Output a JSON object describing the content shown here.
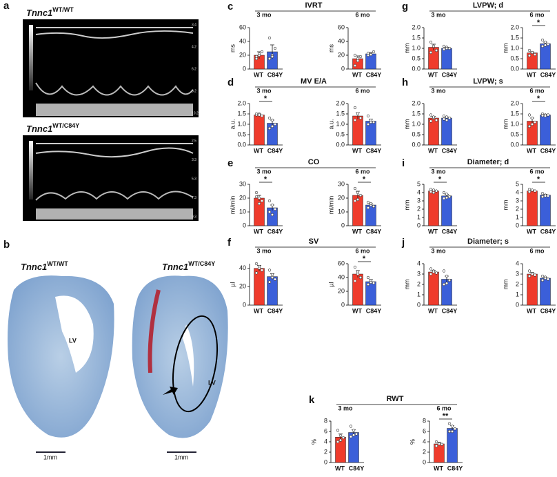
{
  "images": {
    "a": {
      "letter": "a",
      "echo": [
        {
          "gene": "Tnnc1",
          "genotype": "WT/WT",
          "depth_labels": [
            "3.4",
            "4.2",
            "6.2",
            "8.2",
            "10.2"
          ]
        },
        {
          "gene": "Tnnc1",
          "genotype": "WT/C84Y",
          "depth_labels": [
            "2.5",
            "3.3",
            "5.3",
            "7.3",
            "9.3"
          ]
        }
      ]
    },
    "b": {
      "letter": "b",
      "histology": [
        {
          "gene": "Tnnc1",
          "genotype": "WT/WT",
          "region": "LV",
          "scale": "1mm"
        },
        {
          "gene": "Tnnc1",
          "genotype": "WT/C84Y",
          "region": "LV",
          "scale": "1mm"
        }
      ]
    }
  },
  "chart_data": [
    {
      "type": "bar",
      "panel": "c",
      "title": "IVRT",
      "ylabel": "ms",
      "categories": [
        "WT",
        "C84Y"
      ],
      "colors": [
        "#ef3b2c",
        "#3b5fd9"
      ],
      "groups": [
        {
          "label": "3 mo",
          "ylim": [
            0,
            60
          ],
          "yticks": [
            0,
            20,
            40,
            60
          ],
          "values": [
            20,
            25
          ],
          "errors": [
            5,
            10
          ],
          "points": [
            [
              15,
              22,
              25,
              18,
              20
            ],
            [
              15,
              20,
              30,
              45,
              18
            ]
          ]
        },
        {
          "label": "6 mo",
          "ylim": [
            0,
            60
          ],
          "yticks": [
            0,
            20,
            40,
            60
          ],
          "values": [
            15,
            22
          ],
          "errors": [
            4,
            2
          ],
          "points": [
            [
              5,
              12,
              18,
              20,
              15
            ],
            [
              20,
              22,
              25,
              23,
              21
            ]
          ]
        }
      ]
    },
    {
      "type": "bar",
      "panel": "d",
      "title": "MV E/A",
      "ylabel": "a.u.",
      "categories": [
        "WT",
        "C84Y"
      ],
      "colors": [
        "#ef3b2c",
        "#3b5fd9"
      ],
      "groups": [
        {
          "label": "3 mo",
          "ylim": [
            0,
            2
          ],
          "yticks": [
            {
              "value": 0,
              "label": "0.0"
            },
            {
              "value": 0.5,
              "label": "0.5"
            },
            {
              "value": 1,
              "label": "1.0"
            },
            {
              "value": 1.5,
              "label": "1.5"
            },
            {
              "value": 2,
              "label": "2.0"
            }
          ],
          "values": [
            1.45,
            1.05
          ],
          "errors": [
            0.05,
            0.15
          ],
          "points": [
            [
              1.45,
              1.5,
              1.4,
              1.5,
              1.45
            ],
            [
              1.3,
              1.2,
              1.0,
              0.8,
              0.9
            ]
          ],
          "significance": "*"
        },
        {
          "label": "6 mo",
          "ylim": [
            0,
            2
          ],
          "yticks": [
            {
              "value": 0,
              "label": "0.0"
            },
            {
              "value": 0.5,
              "label": "0.5"
            },
            {
              "value": 1,
              "label": "1.0"
            },
            {
              "value": 1.5,
              "label": "1.5"
            },
            {
              "value": 2,
              "label": "2.0"
            }
          ],
          "values": [
            1.4,
            1.15
          ],
          "errors": [
            0.15,
            0.1
          ],
          "points": [
            [
              1.8,
              1.5,
              1.3,
              1.2
            ],
            [
              1.4,
              1.2,
              1.1,
              1.0,
              1.1
            ]
          ]
        }
      ]
    },
    {
      "type": "bar",
      "panel": "e",
      "title": "CO",
      "ylabel": "ml/min",
      "categories": [
        "WT",
        "C84Y"
      ],
      "colors": [
        "#ef3b2c",
        "#3b5fd9"
      ],
      "groups": [
        {
          "label": "3 mo",
          "ylim": [
            0,
            30
          ],
          "yticks": [
            0,
            10,
            20,
            30
          ],
          "values": [
            20,
            13
          ],
          "errors": [
            2,
            2
          ],
          "points": [
            [
              24,
              20,
              18,
              21,
              16
            ],
            [
              18,
              15,
              12,
              10,
              8
            ]
          ],
          "significance": "*"
        },
        {
          "label": "6 mo",
          "ylim": [
            0,
            30
          ],
          "yticks": [
            0,
            10,
            20,
            30
          ],
          "values": [
            22,
            15
          ],
          "errors": [
            3,
            1
          ],
          "points": [
            [
              27,
              24,
              22,
              18,
              19
            ],
            [
              17,
              15,
              14,
              13,
              16
            ]
          ],
          "significance": "*"
        }
      ]
    },
    {
      "type": "bar",
      "panel": "f",
      "title": "SV",
      "ylabel": "µl",
      "categories": [
        "WT",
        "C84Y"
      ],
      "colors": [
        "#ef3b2c",
        "#3b5fd9"
      ],
      "groups": [
        {
          "label": "3 mo",
          "ylim": [
            0,
            45
          ],
          "yticks": [
            0,
            20,
            40
          ],
          "values": [
            40,
            31
          ],
          "errors": [
            3,
            3
          ],
          "points": [
            [
              45,
              42,
              38,
              35,
              40
            ],
            [
              38,
              33,
              28,
              25,
              30
            ]
          ]
        },
        {
          "label": "6 mo",
          "ylim": [
            0,
            60
          ],
          "yticks": [
            0,
            20,
            40,
            60
          ],
          "values": [
            45,
            34
          ],
          "errors": [
            5,
            3
          ],
          "points": [
            [
              55,
              48,
              40,
              35,
              45
            ],
            [
              40,
              35,
              32,
              30,
              33
            ]
          ],
          "significance": "*"
        }
      ]
    },
    {
      "type": "bar",
      "panel": "g",
      "title": "LVPW; d",
      "ylabel": "mm",
      "categories": [
        "WT",
        "C84Y"
      ],
      "colors": [
        "#ef3b2c",
        "#3b5fd9"
      ],
      "groups": [
        {
          "label": "3 mo",
          "ylim": [
            0,
            2
          ],
          "yticks": [
            {
              "value": 0,
              "label": "0.0"
            },
            {
              "value": 0.5,
              "label": "0.5"
            },
            {
              "value": 1,
              "label": "1.0"
            },
            {
              "value": 1.5,
              "label": "1.5"
            },
            {
              "value": 2,
              "label": "2.0"
            }
          ],
          "values": [
            1.05,
            1.0
          ],
          "errors": [
            0.15,
            0.05
          ],
          "points": [
            [
              1.3,
              1.1,
              0.9,
              0.8,
              1.1
            ],
            [
              1.1,
              1.05,
              1.0,
              0.95,
              1.0
            ]
          ]
        },
        {
          "label": "6 mo",
          "ylim": [
            0,
            2
          ],
          "yticks": [
            {
              "value": 0,
              "label": "0.0"
            },
            {
              "value": 0.5,
              "label": "0.5"
            },
            {
              "value": 1,
              "label": "1.0"
            },
            {
              "value": 1.5,
              "label": "1.5"
            },
            {
              "value": 2,
              "label": "2.0"
            }
          ],
          "values": [
            0.78,
            1.22
          ],
          "errors": [
            0.05,
            0.08
          ],
          "points": [
            [
              0.9,
              0.8,
              0.7,
              0.65,
              0.8
            ],
            [
              1.4,
              1.3,
              1.2,
              1.1,
              1.15
            ]
          ],
          "significance": "*"
        }
      ]
    },
    {
      "type": "bar",
      "panel": "h",
      "title": "LVPW; s",
      "ylabel": "mm",
      "categories": [
        "WT",
        "C84Y"
      ],
      "colors": [
        "#ef3b2c",
        "#3b5fd9"
      ],
      "groups": [
        {
          "label": "3 mo",
          "ylim": [
            0,
            2
          ],
          "yticks": [
            {
              "value": 0,
              "label": "0.0"
            },
            {
              "value": 0.5,
              "label": "0.5"
            },
            {
              "value": 1,
              "label": "1.0"
            },
            {
              "value": 1.5,
              "label": "1.5"
            },
            {
              "value": 2,
              "label": "2.0"
            }
          ],
          "values": [
            1.3,
            1.3
          ],
          "errors": [
            0.08,
            0.05
          ],
          "points": [
            [
              1.45,
              1.3,
              1.2,
              1.15,
              1.35
            ],
            [
              1.4,
              1.35,
              1.3,
              1.25,
              1.2
            ]
          ]
        },
        {
          "label": "6 mo",
          "ylim": [
            0,
            2
          ],
          "yticks": [
            {
              "value": 0,
              "label": "0.0"
            },
            {
              "value": 0.5,
              "label": "0.5"
            },
            {
              "value": 1,
              "label": "1.0"
            },
            {
              "value": 1.5,
              "label": "1.5"
            },
            {
              "value": 2,
              "label": "2.0"
            }
          ],
          "values": [
            1.15,
            1.45
          ],
          "errors": [
            0.15,
            0.03
          ],
          "points": [
            [
              1.45,
              1.3,
              1.1,
              0.9,
              1.0
            ],
            [
              1.5,
              1.45,
              1.45,
              1.42,
              1.4
            ]
          ],
          "significance": "*"
        }
      ]
    },
    {
      "type": "bar",
      "panel": "i",
      "title": "Diameter; d",
      "ylabel": "mm",
      "categories": [
        "WT",
        "C84Y"
      ],
      "colors": [
        "#ef3b2c",
        "#3b5fd9"
      ],
      "groups": [
        {
          "label": "3 mo",
          "ylim": [
            0,
            5
          ],
          "yticks": [
            0,
            1,
            2,
            3,
            4,
            5
          ],
          "values": [
            4.2,
            3.6
          ],
          "errors": [
            0.1,
            0.2
          ],
          "points": [
            [
              4.4,
              4.3,
              4.2,
              4.1,
              4.0
            ],
            [
              4.0,
              3.8,
              3.5,
              3.3,
              3.4
            ]
          ],
          "significance": "*"
        },
        {
          "label": "6 mo",
          "ylim": [
            0,
            5
          ],
          "yticks": [
            0,
            1,
            2,
            3,
            4,
            5
          ],
          "values": [
            4.2,
            3.7
          ],
          "errors": [
            0.1,
            0.1
          ],
          "points": [
            [
              4.4,
              4.3,
              4.2,
              4.1
            ],
            [
              3.9,
              3.7,
              3.6,
              3.5,
              3.6
            ]
          ],
          "significance": "*"
        }
      ]
    },
    {
      "type": "bar",
      "panel": "j",
      "title": "Diameter; s",
      "ylabel": "mm",
      "categories": [
        "WT",
        "C84Y"
      ],
      "colors": [
        "#ef3b2c",
        "#3b5fd9"
      ],
      "groups": [
        {
          "label": "3 mo",
          "ylim": [
            0,
            4
          ],
          "yticks": [
            0,
            1,
            2,
            3,
            4
          ],
          "values": [
            3.2,
            2.5
          ],
          "errors": [
            0.15,
            0.3
          ],
          "points": [
            [
              3.5,
              3.3,
              3.1,
              3.0,
              3.2
            ],
            [
              3.3,
              2.8,
              2.4,
              2.0,
              2.1
            ]
          ]
        },
        {
          "label": "6 mo",
          "ylim": [
            0,
            4
          ],
          "yticks": [
            0,
            1,
            2,
            3,
            4
          ],
          "values": [
            3.0,
            2.6
          ],
          "errors": [
            0.15,
            0.1
          ],
          "points": [
            [
              3.3,
              3.0,
              2.9,
              2.8,
              3.0
            ],
            [
              2.8,
              2.7,
              2.5,
              2.4,
              2.6
            ]
          ]
        }
      ]
    },
    {
      "type": "bar",
      "panel": "k",
      "title": "RWT",
      "ylabel": "%",
      "categories": [
        "WT",
        "C84Y"
      ],
      "colors": [
        "#ef3b2c",
        "#3b5fd9"
      ],
      "groups": [
        {
          "label": "3 mo",
          "ylim": [
            0,
            8
          ],
          "yticks": [
            0,
            2,
            4,
            6,
            8
          ],
          "values": [
            4.9,
            5.8
          ],
          "errors": [
            0.6,
            0.5
          ],
          "points": [
            [
              6.2,
              5.2,
              4.8,
              4.0,
              4.3
            ],
            [
              7.0,
              6.2,
              5.5,
              5.0,
              5.3
            ]
          ]
        },
        {
          "label": "6 mo",
          "ylim": [
            0,
            8
          ],
          "yticks": [
            0,
            2,
            4,
            6,
            8
          ],
          "values": [
            3.6,
            6.6
          ],
          "errors": [
            0.3,
            0.5
          ],
          "points": [
            [
              4.0,
              3.7,
              3.5,
              3.2,
              3.6
            ],
            [
              7.5,
              7.0,
              6.5,
              6.0,
              6.0
            ]
          ],
          "significance": "**"
        }
      ]
    }
  ]
}
